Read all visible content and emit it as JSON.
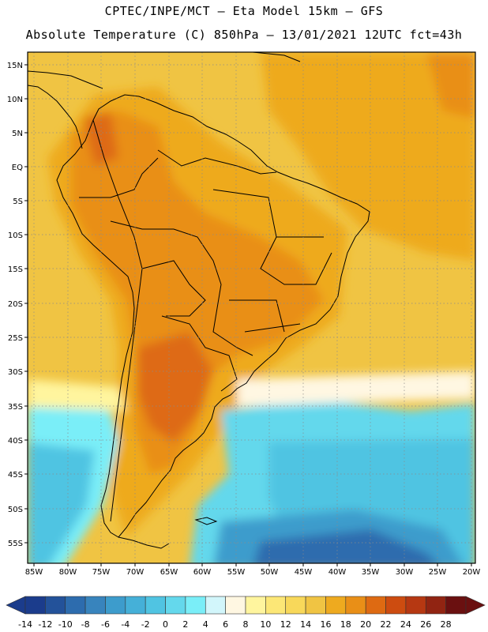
{
  "header": {
    "line1": "CPTEC/INPE/MCT –  Eta Model 15km – GFS",
    "line2": "Absolute Temperature (C) 850hPa – 13/01/2021 12UTC fct=43h"
  },
  "map": {
    "lat_labels": [
      "15N",
      "10N",
      "5N",
      "EQ",
      "5S",
      "10S",
      "15S",
      "20S",
      "25S",
      "30S",
      "35S",
      "40S",
      "45S",
      "50S",
      "55S"
    ],
    "lon_labels": [
      "85W",
      "80W",
      "75W",
      "70W",
      "65W",
      "60W",
      "55W",
      "50W",
      "45W",
      "40W",
      "35W",
      "30W",
      "25W",
      "20W"
    ],
    "domain": {
      "lon_min": -86,
      "lon_max": -19.5,
      "lat_min": -57.5,
      "lat_max": 16.5
    },
    "colors": {
      "land_border": "#000000",
      "grid": "#8a8a8a"
    }
  },
  "colorbar": {
    "labels": [
      "-14",
      "-12",
      "-10",
      "-8",
      "-6",
      "-4",
      "-2",
      "0",
      "2",
      "4",
      "6",
      "8",
      "10",
      "12",
      "14",
      "16",
      "18",
      "20",
      "22",
      "24",
      "26",
      "28"
    ],
    "colors": [
      "#1b3c8c",
      "#23529a",
      "#2d6cae",
      "#3884bd",
      "#3d9ccc",
      "#45b0d8",
      "#50c4e2",
      "#64d8ec",
      "#7aeef8",
      "#d2f6fb",
      "#fff7e2",
      "#fff59e",
      "#fce776",
      "#f8d85a",
      "#f0c443",
      "#eeaa1f",
      "#e98f17",
      "#de6a12",
      "#cd4c10",
      "#b63812",
      "#912412",
      "#6a1010"
    ]
  }
}
